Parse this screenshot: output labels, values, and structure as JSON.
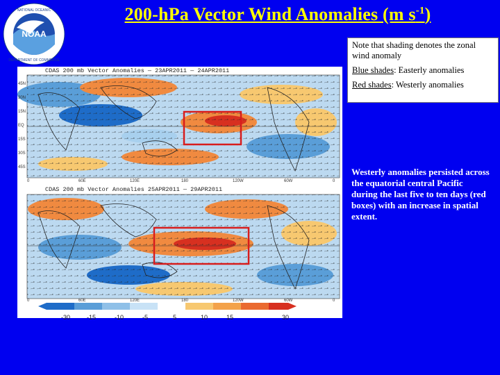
{
  "header": {
    "title": "200-h",
    "title_full_pre": "200-hPa Vector Wind Anomalies (m s",
    "title_sup": "-1",
    "title_post": ")"
  },
  "logo": {
    "name": "NOAA",
    "ring_text": "NATIONAL OCEANIC AND ATMOSPHERIC ADMINISTRATION · U.S. DEPARTMENT OF COMMERCE"
  },
  "note": {
    "line1": "Note that shading denotes the zonal wind anomaly",
    "blue_label": "Blue shades",
    "blue_text": ": Easterly anomalies",
    "red_label": "Red shades",
    "red_text": ": Westerly anomalies"
  },
  "summary": "Westerly anomalies persisted across the equatorial central Pacific during the last five to ten days (red boxes) with an increase in spatial extent.",
  "maps": {
    "panel1_title": "CDAS 200 mb Vector Anomalies — 23APR2011 — 24APR2011",
    "panel2_title": "CDAS 200 mb Vector Anomalies 25APR2011 — 29APR2011",
    "lat_labels": [
      "45N",
      "30N",
      "15N",
      "EQ",
      "15S",
      "30S",
      "45S"
    ],
    "lon_labels": [
      "0",
      "60E",
      "120E",
      "180",
      "120W",
      "60W",
      "0"
    ],
    "colorbar_labels": [
      "-30",
      "-15",
      "-10",
      "-5",
      "5",
      "10",
      "15",
      "30"
    ],
    "colors": {
      "strong_west": "#d73020",
      "west": "#f08a40",
      "weak_west": "#f7c870",
      "neutral": "#ffffff",
      "weak_east": "#a8d0ee",
      "east": "#5a9ed8",
      "strong_east": "#1e6cc8",
      "box": "#d81c1c"
    }
  }
}
